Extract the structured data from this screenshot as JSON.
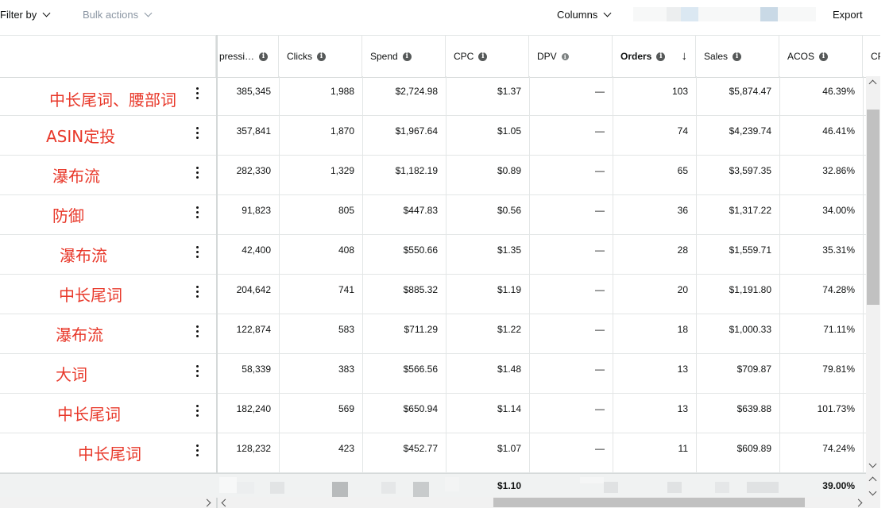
{
  "toolbar": {
    "filter_label": "Filter by",
    "bulk_label": "Bulk actions",
    "columns_label": "Columns",
    "export_label": "Export"
  },
  "columns": [
    {
      "label": "pressi…",
      "info": true
    },
    {
      "label": "Clicks",
      "info": true
    },
    {
      "label": "Spend",
      "info": true
    },
    {
      "label": "CPC",
      "info": true
    },
    {
      "label": "DPV",
      "info": true
    },
    {
      "label": "Orders",
      "info": true,
      "sorted": "desc"
    },
    {
      "label": "Sales",
      "info": true
    },
    {
      "label": "ACOS",
      "info": true
    },
    {
      "label": "CP",
      "info": false
    }
  ],
  "rows": [
    {
      "name": "中长尾词、腰部词",
      "impressions": "385,345",
      "clicks": "1,988",
      "spend": "$2,724.98",
      "cpc": "$1.37",
      "dpv": "—",
      "orders": "103",
      "sales": "$5,874.47",
      "acos": "46.39%"
    },
    {
      "name": "ASIN定投",
      "impressions": "357,841",
      "clicks": "1,870",
      "spend": "$1,967.64",
      "cpc": "$1.05",
      "dpv": "—",
      "orders": "74",
      "sales": "$4,239.74",
      "acos": "46.41%"
    },
    {
      "name": "瀑布流",
      "impressions": "282,330",
      "clicks": "1,329",
      "spend": "$1,182.19",
      "cpc": "$0.89",
      "dpv": "—",
      "orders": "65",
      "sales": "$3,597.35",
      "acos": "32.86%"
    },
    {
      "name": "防御",
      "impressions": "91,823",
      "clicks": "805",
      "spend": "$447.83",
      "cpc": "$0.56",
      "dpv": "—",
      "orders": "36",
      "sales": "$1,317.22",
      "acos": "34.00%"
    },
    {
      "name": "瀑布流",
      "impressions": "42,400",
      "clicks": "408",
      "spend": "$550.66",
      "cpc": "$1.35",
      "dpv": "—",
      "orders": "28",
      "sales": "$1,559.71",
      "acos": "35.31%"
    },
    {
      "name": "中长尾词",
      "impressions": "204,642",
      "clicks": "741",
      "spend": "$885.32",
      "cpc": "$1.19",
      "dpv": "—",
      "orders": "20",
      "sales": "$1,191.80",
      "acos": "74.28%"
    },
    {
      "name": "瀑布流",
      "impressions": "122,874",
      "clicks": "583",
      "spend": "$711.29",
      "cpc": "$1.22",
      "dpv": "—",
      "orders": "18",
      "sales": "$1,000.33",
      "acos": "71.11%"
    },
    {
      "name": "大词",
      "impressions": "58,339",
      "clicks": "383",
      "spend": "$566.56",
      "cpc": "$1.48",
      "dpv": "—",
      "orders": "13",
      "sales": "$709.87",
      "acos": "79.81%"
    },
    {
      "name": "中长尾词",
      "impressions": "182,240",
      "clicks": "569",
      "spend": "$650.94",
      "cpc": "$1.14",
      "dpv": "—",
      "orders": "13",
      "sales": "$639.88",
      "acos": "101.73%"
    },
    {
      "name": "中长尾词",
      "impressions": "128,232",
      "clicks": "423",
      "spend": "$452.77",
      "cpc": "$1.07",
      "dpv": "—",
      "orders": "11",
      "sales": "$609.89",
      "acos": "74.24%"
    }
  ],
  "footer": {
    "cpc": "$1.10",
    "acos": "39.00%"
  },
  "colors": {
    "annotation_red": "#e8382a",
    "border": "#e3e6e6",
    "footer_bg": "#f0f2f2"
  }
}
